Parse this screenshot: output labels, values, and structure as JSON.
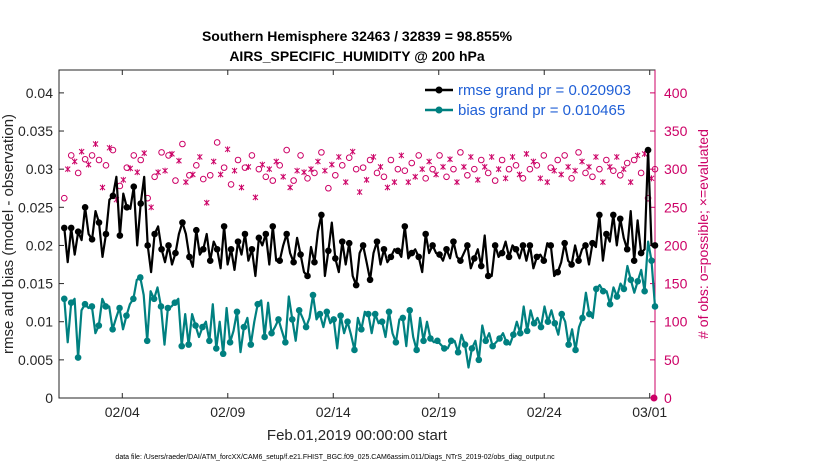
{
  "chart_data": {
    "type": "line",
    "title_line1": "Southern Hemisphere 32463 / 32839 = 98.855%",
    "title_line2": "AIRS_SPECIFIC_HUMIDITY @ 200 hPa",
    "xlabel": "Feb.01,2019 00:00:00 start",
    "ylabel_left": "rmse and bias (model - observation)",
    "ylabel_right": "# of obs: o=possible; ×=evaluated",
    "footnote": "data file: /Users/raeder/DAI/ATM_forcXX/CAM6_setup/f.e21.FHIST_BGC.f09_025.CAM6assim.011/Diags_NTrS_2019-02/obs_diag_output.nc",
    "x_tick_labels": [
      "02/04",
      "02/09",
      "02/14",
      "02/19",
      "02/24",
      "03/01"
    ],
    "x_tick_days": [
      4,
      9,
      14,
      19,
      24,
      29
    ],
    "xlim_days": [
      1.0,
      29.25
    ],
    "ylim_left": [
      0,
      0.043
    ],
    "y_ticks_left": [
      "0",
      "0.005",
      "0.01",
      "0.015",
      "0.02",
      "0.025",
      "0.03",
      "0.035",
      "0.04"
    ],
    "y_tick_values_left": [
      0,
      0.005,
      0.01,
      0.015,
      0.02,
      0.025,
      0.03,
      0.035,
      0.04
    ],
    "ylim_right": [
      0,
      430
    ],
    "y_ticks_right": [
      "0",
      "50",
      "100",
      "150",
      "200",
      "250",
      "300",
      "350",
      "400"
    ],
    "y_tick_values_right": [
      0,
      50,
      100,
      150,
      200,
      250,
      300,
      350,
      400
    ],
    "series": [
      {
        "name": "rmse",
        "legend_label": "rmse grand pr = 0.020903",
        "color": "#000000",
        "values": [
          0.0223,
          0.0178,
          0.0223,
          0.0188,
          0.0218,
          0.0207,
          0.025,
          0.0215,
          0.0208,
          0.0245,
          0.023,
          0.0185,
          0.0215,
          0.026,
          0.0265,
          0.029,
          0.0213,
          0.0268,
          0.025,
          0.0248,
          0.0277,
          0.02,
          0.0255,
          0.029,
          0.02,
          0.0165,
          0.0215,
          0.0225,
          0.0195,
          0.0178,
          0.02,
          0.0175,
          0.019,
          0.0215,
          0.023,
          0.0215,
          0.0185,
          0.0172,
          0.022,
          0.0188,
          0.0195,
          0.0215,
          0.018,
          0.0205,
          0.0195,
          0.017,
          0.0225,
          0.0175,
          0.0195,
          0.0168,
          0.0205,
          0.0188,
          0.0215,
          0.018,
          0.0195,
          0.016,
          0.021,
          0.02,
          0.0215,
          0.0175,
          0.0225,
          0.018,
          0.018,
          0.02,
          0.0215,
          0.019,
          0.0178,
          0.021,
          0.0188,
          0.0165,
          0.016,
          0.0198,
          0.0178,
          0.0218,
          0.024,
          0.016,
          0.0193,
          0.023,
          0.0183,
          0.0165,
          0.0205,
          0.0175,
          0.0203,
          0.016,
          0.0148,
          0.019,
          0.02,
          0.0178,
          0.0155,
          0.019,
          0.0205,
          0.0175,
          0.0195,
          0.0178,
          0.0185,
          0.0195,
          0.0193,
          0.0185,
          0.0225,
          0.0183,
          0.019,
          0.0195,
          0.0185,
          0.0165,
          0.0215,
          0.019,
          0.02,
          0.019,
          0.0188,
          0.018,
          0.0195,
          0.0183,
          0.0205,
          0.0185,
          0.018,
          0.019,
          0.02,
          0.017,
          0.0183,
          0.0195,
          0.0173,
          0.0213,
          0.016,
          0.016,
          0.02,
          0.0185,
          0.019,
          0.0205,
          0.0185,
          0.02,
          0.0195,
          0.0183,
          0.02,
          0.018,
          0.02,
          0.017,
          0.0185,
          0.0188,
          0.018,
          0.0203,
          0.02,
          0.016,
          0.0165,
          0.0178,
          0.0203,
          0.018,
          0.0175,
          0.02,
          0.018,
          0.0195,
          0.02,
          0.0175,
          0.0203,
          0.0198,
          0.024,
          0.018,
          0.0215,
          0.0205,
          0.024,
          0.02,
          0.0235,
          0.021,
          0.0195,
          0.0245,
          0.018,
          0.0233,
          0.019,
          0.0195,
          0.0325,
          0.02,
          0.02
        ]
      },
      {
        "name": "bias",
        "legend_label": "bias grand pr = 0.010465",
        "color": "#008080",
        "values": [
          0.013,
          0.0073,
          0.0125,
          0.013,
          0.0053,
          0.0115,
          0.0123,
          0.0118,
          0.012,
          0.0085,
          0.0095,
          0.013,
          0.012,
          0.012,
          0.009,
          0.0105,
          0.0118,
          0.009,
          0.0108,
          0.0123,
          0.013,
          0.0155,
          0.0158,
          0.0135,
          0.0075,
          0.014,
          0.013,
          0.0145,
          0.012,
          0.007,
          0.0118,
          0.012,
          0.0125,
          0.013,
          0.0068,
          0.011,
          0.007,
          0.011,
          0.0095,
          0.008,
          0.0093,
          0.01,
          0.0075,
          0.0123,
          0.0065,
          0.01,
          0.0058,
          0.0118,
          0.0073,
          0.0088,
          0.0113,
          0.006,
          0.0093,
          0.0105,
          0.007,
          0.01,
          0.0123,
          0.0128,
          0.008,
          0.0125,
          0.0085,
          0.0093,
          0.0103,
          0.0088,
          0.0073,
          0.0133,
          0.0103,
          0.0075,
          0.0115,
          0.0105,
          0.0093,
          0.0105,
          0.0135,
          0.0103,
          0.011,
          0.0093,
          0.0113,
          0.0098,
          0.0103,
          0.0065,
          0.0108,
          0.0085,
          0.01,
          0.0083,
          0.0063,
          0.0105,
          0.009,
          0.0113,
          0.011,
          0.0085,
          0.011,
          0.0098,
          0.01,
          0.008,
          0.0113,
          0.0085,
          0.0073,
          0.0103,
          0.0105,
          0.0068,
          0.0115,
          0.008,
          0.0063,
          0.0105,
          0.0075,
          0.01,
          0.0078,
          0.0073,
          0.0075,
          0.007,
          0.0065,
          0.0065,
          0.0075,
          0.0075,
          0.006,
          0.0083,
          0.007,
          0.004,
          0.0065,
          0.0075,
          0.005,
          0.0095,
          0.0075,
          0.0085,
          0.0068,
          0.0073,
          0.0078,
          0.0085,
          0.0073,
          0.007,
          0.0083,
          0.01,
          0.0085,
          0.012,
          0.0088,
          0.0115,
          0.0098,
          0.0105,
          0.0093,
          0.012,
          0.01,
          0.0115,
          0.0098,
          0.0083,
          0.011,
          0.01,
          0.007,
          0.009,
          0.0063,
          0.0093,
          0.0105,
          0.0138,
          0.011,
          0.0105,
          0.0143,
          0.0148,
          0.014,
          0.014,
          0.0123,
          0.0145,
          0.0133,
          0.015,
          0.0143,
          0.0173,
          0.0155,
          0.0138,
          0.0153,
          0.0168,
          0.014,
          0.0205,
          0.018,
          0.012
        ]
      }
    ],
    "obs_possible": [
      262,
      302,
      318,
      312,
      295,
      325,
      313,
      308,
      318,
      335,
      312,
      278,
      305,
      330,
      325,
      262,
      278,
      288,
      302,
      303,
      318,
      298,
      312,
      323,
      262,
      252,
      290,
      298,
      322,
      300,
      318,
      322,
      285,
      313,
      333,
      285,
      292,
      295,
      305,
      318,
      287,
      258,
      292,
      312,
      335,
      295,
      302,
      328,
      280,
      300,
      312,
      278,
      302,
      305,
      318,
      265,
      300,
      308,
      290,
      302,
      285,
      312,
      305,
      292,
      325,
      278,
      285,
      300,
      318,
      298,
      288,
      302,
      295,
      312,
      322,
      300,
      275,
      308,
      292,
      318,
      305,
      285,
      315,
      325,
      300,
      272,
      302,
      288,
      312,
      318,
      295,
      305,
      290,
      278,
      312,
      285,
      300,
      320,
      298,
      285,
      308,
      292,
      318,
      302,
      288,
      312,
      300,
      295,
      318,
      305,
      290,
      315,
      300,
      285,
      322,
      305,
      292,
      318,
      300,
      288,
      312,
      305,
      295,
      318,
      285,
      302,
      312,
      290,
      300,
      318,
      305,
      295,
      288,
      322,
      300,
      312,
      305,
      290,
      318,
      285,
      302,
      300,
      312,
      295,
      318,
      305,
      288,
      300,
      322,
      312,
      295,
      305,
      290,
      318,
      300,
      285,
      312,
      305,
      298,
      318,
      292,
      302,
      308,
      285,
      312,
      320,
      295,
      322,
      262,
      290,
      300
    ],
    "obs_evaluated": [
      260,
      300,
      316,
      310,
      293,
      323,
      311,
      306,
      316,
      333,
      310,
      276,
      303,
      328,
      323,
      260,
      276,
      286,
      300,
      301,
      316,
      296,
      310,
      321,
      260,
      250,
      288,
      296,
      320,
      298,
      316,
      320,
      283,
      311,
      331,
      283,
      290,
      293,
      303,
      316,
      285,
      256,
      290,
      310,
      333,
      293,
      300,
      326,
      278,
      298,
      310,
      276,
      300,
      303,
      316,
      263,
      298,
      306,
      288,
      300,
      283,
      310,
      303,
      290,
      323,
      276,
      283,
      298,
      316,
      296,
      286,
      300,
      293,
      310,
      320,
      298,
      273,
      306,
      290,
      316,
      303,
      283,
      313,
      323,
      298,
      270,
      300,
      286,
      310,
      316,
      293,
      303,
      288,
      276,
      310,
      283,
      298,
      318,
      296,
      283,
      306,
      290,
      316,
      300,
      286,
      310,
      298,
      293,
      316,
      303,
      288,
      313,
      298,
      283,
      320,
      303,
      290,
      316,
      298,
      286,
      310,
      303,
      293,
      316,
      283,
      300,
      310,
      288,
      298,
      316,
      303,
      293,
      286,
      320,
      298,
      310,
      303,
      288,
      316,
      283,
      300,
      298,
      310,
      293,
      316,
      303,
      286,
      298,
      320,
      310,
      293,
      303,
      288,
      316,
      298,
      283,
      310,
      303,
      296,
      316,
      290,
      300,
      306,
      283,
      310,
      318,
      293,
      320,
      260,
      288,
      298
    ],
    "colors": {
      "rmse": "#000000",
      "bias": "#008080",
      "obs": "#cc0066",
      "axis": "#262626"
    }
  }
}
